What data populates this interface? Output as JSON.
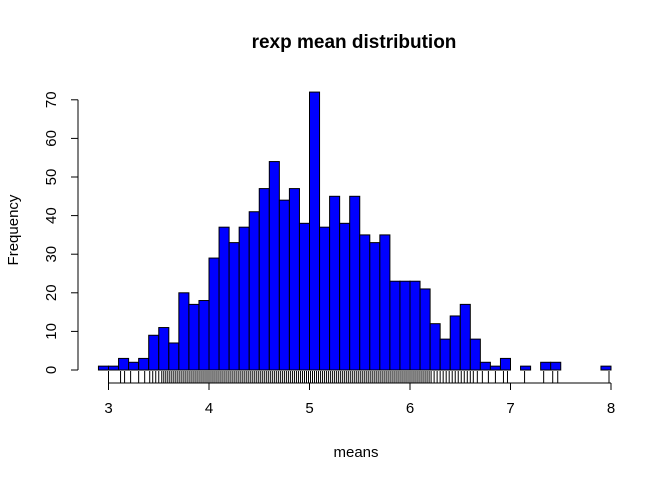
{
  "chart_data": {
    "type": "bar",
    "title": "rexp mean distribution",
    "xlabel": "means",
    "ylabel": "Frequency",
    "bar_color": "#0000ff",
    "border_color": "#000000",
    "xlim": [
      3,
      8
    ],
    "ylim": [
      0,
      72
    ],
    "x_ticks": [
      3,
      4,
      5,
      6,
      7,
      8
    ],
    "y_ticks": [
      0,
      10,
      20,
      30,
      40,
      50,
      60,
      70
    ],
    "bin_width": 0.1,
    "bins_start": [
      2.9,
      3.0,
      3.1,
      3.2,
      3.3,
      3.4,
      3.5,
      3.6,
      3.7,
      3.8,
      3.9,
      4.0,
      4.1,
      4.2,
      4.3,
      4.4,
      4.5,
      4.6,
      4.7,
      4.8,
      4.9,
      5.0,
      5.1,
      5.2,
      5.3,
      5.4,
      5.5,
      5.6,
      5.7,
      5.8,
      5.9,
      6.0,
      6.1,
      6.2,
      6.3,
      6.4,
      6.5,
      6.6,
      6.7,
      6.8,
      6.9,
      7.0,
      7.1,
      7.2,
      7.3,
      7.4,
      7.5,
      7.6,
      7.7,
      7.8,
      7.9
    ],
    "values": [
      1,
      1,
      3,
      2,
      3,
      9,
      11,
      7,
      20,
      17,
      18,
      29,
      37,
      33,
      37,
      41,
      47,
      54,
      44,
      47,
      38,
      72,
      37,
      45,
      38,
      45,
      35,
      33,
      35,
      23,
      23,
      23,
      21,
      12,
      8,
      14,
      17,
      8,
      2,
      1,
      3,
      0,
      1,
      0,
      2,
      2,
      0,
      0,
      0,
      0,
      1
    ],
    "rug": {
      "type": "rug",
      "x": [
        3.0,
        3.12,
        3.16,
        3.22,
        3.3,
        3.36,
        3.41,
        3.44,
        3.47,
        3.5,
        3.53,
        3.55,
        3.57,
        3.59,
        3.61,
        3.63,
        3.65,
        3.67,
        3.69,
        3.71,
        3.73,
        3.75,
        3.77,
        3.79,
        3.81,
        3.83,
        3.85,
        3.87,
        3.89,
        3.91,
        3.93,
        3.95,
        3.97,
        3.99,
        4.01,
        4.03,
        4.05,
        4.07,
        4.09,
        4.11,
        4.13,
        4.15,
        4.17,
        4.19,
        4.21,
        4.23,
        4.25,
        4.27,
        4.29,
        4.31,
        4.33,
        4.35,
        4.37,
        4.39,
        4.41,
        4.43,
        4.45,
        4.47,
        4.49,
        4.51,
        4.53,
        4.55,
        4.57,
        4.59,
        4.61,
        4.63,
        4.65,
        4.67,
        4.69,
        4.71,
        4.73,
        4.75,
        4.77,
        4.79,
        4.81,
        4.83,
        4.85,
        4.87,
        4.89,
        4.91,
        4.93,
        4.95,
        4.97,
        4.99,
        5.01,
        5.03,
        5.05,
        5.07,
        5.09,
        5.11,
        5.13,
        5.15,
        5.17,
        5.19,
        5.21,
        5.23,
        5.25,
        5.27,
        5.29,
        5.31,
        5.33,
        5.35,
        5.37,
        5.39,
        5.41,
        5.43,
        5.45,
        5.47,
        5.49,
        5.51,
        5.53,
        5.55,
        5.57,
        5.59,
        5.61,
        5.63,
        5.65,
        5.67,
        5.69,
        5.71,
        5.73,
        5.75,
        5.77,
        5.79,
        5.81,
        5.83,
        5.85,
        5.87,
        5.89,
        5.91,
        5.93,
        5.95,
        5.97,
        5.99,
        6.01,
        6.03,
        6.05,
        6.07,
        6.09,
        6.11,
        6.13,
        6.15,
        6.17,
        6.19,
        6.21,
        6.24,
        6.27,
        6.3,
        6.33,
        6.36,
        6.39,
        6.42,
        6.45,
        6.48,
        6.51,
        6.54,
        6.57,
        6.6,
        6.63,
        6.67,
        6.72,
        6.78,
        6.85,
        6.93,
        6.97,
        7.14,
        7.33,
        7.42,
        7.47,
        7.98
      ]
    }
  }
}
